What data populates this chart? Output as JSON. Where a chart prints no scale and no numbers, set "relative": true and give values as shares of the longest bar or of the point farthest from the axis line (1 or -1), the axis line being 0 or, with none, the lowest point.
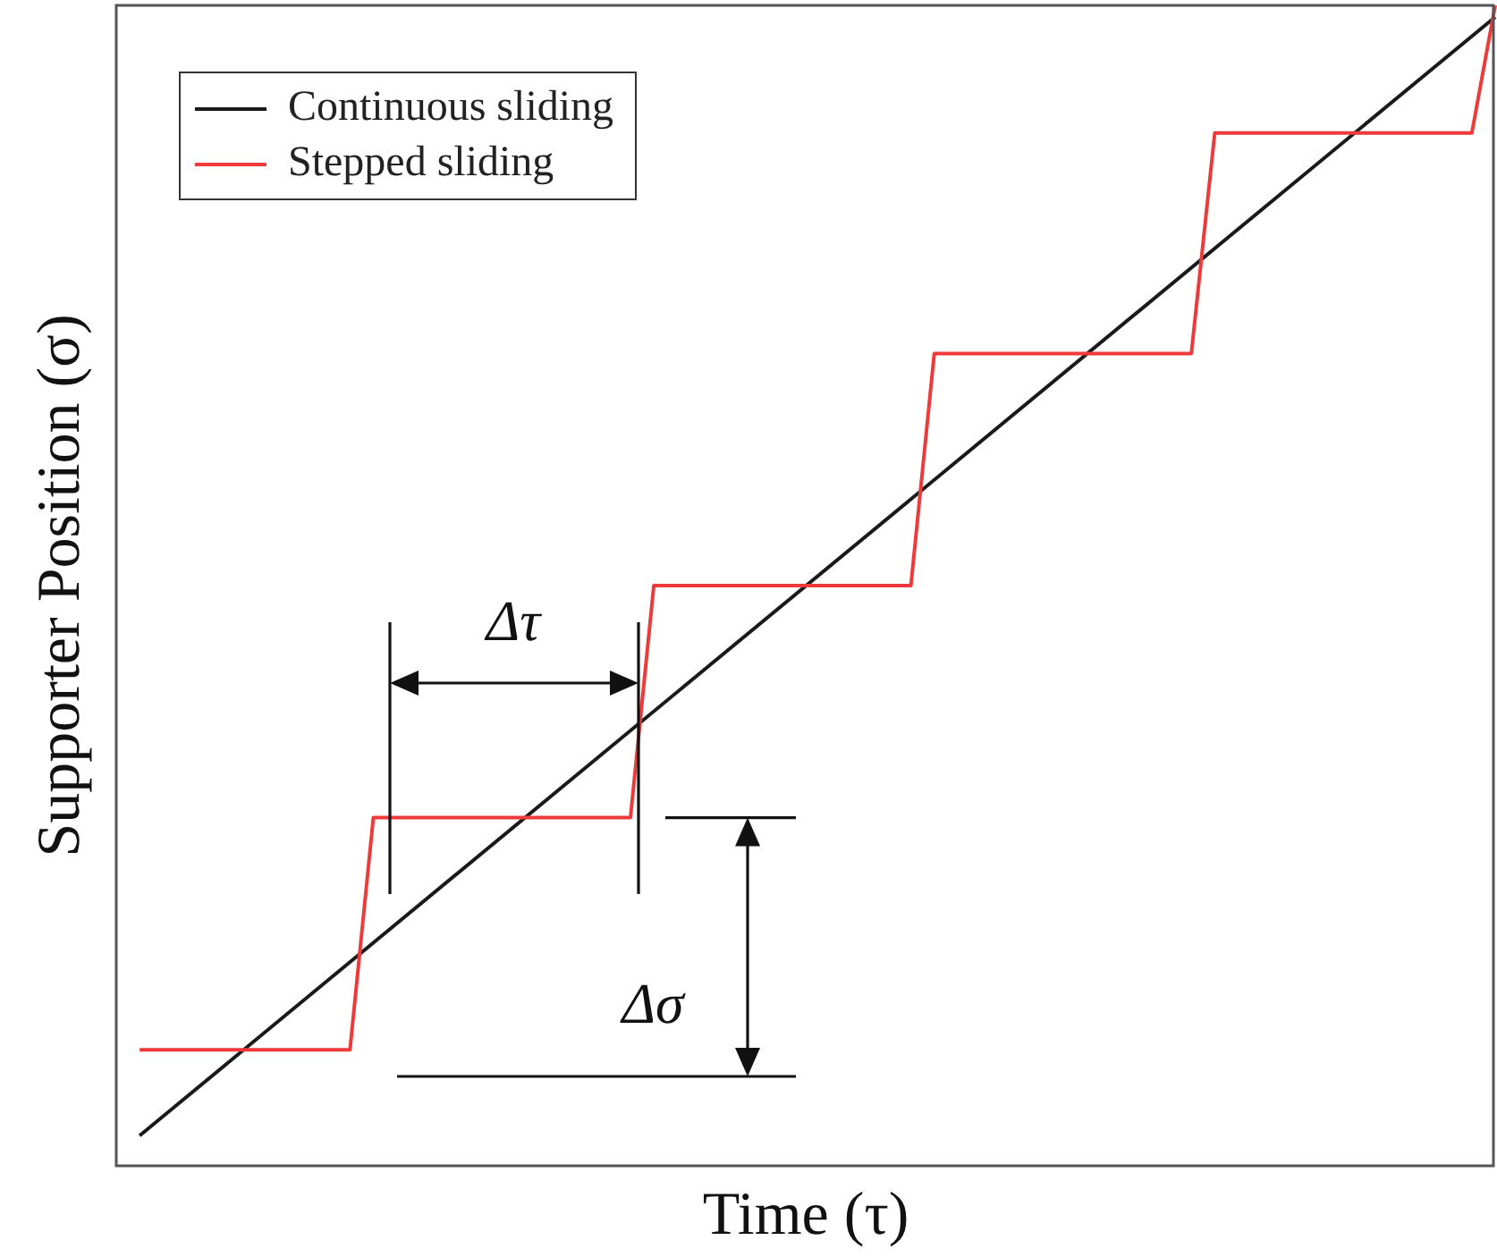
{
  "chart_data": {
    "type": "line",
    "relative": true,
    "xlabel": "Time (τ)",
    "ylabel": "Supporter Position (σ)",
    "legend": "top left",
    "marker": "none",
    "categories": [
      null,
      null,
      null,
      null,
      null,
      null,
      null,
      null,
      null,
      null,
      null,
      null,
      null,
      null,
      null,
      null,
      null,
      null,
      null,
      null,
      null,
      null,
      null,
      null,
      null,
      null,
      null,
      null,
      null,
      null,
      null,
      null,
      null,
      null,
      null,
      null,
      null,
      null,
      null,
      null,
      null,
      null,
      null,
      null,
      null,
      null,
      null,
      null,
      null,
      null,
      null,
      null,
      null,
      null,
      null,
      null,
      null,
      null,
      null,
      null
    ],
    "series": [
      {
        "name": "Continuous sliding",
        "color": "#1a1a1a",
        "values": [
          null,
          0.026,
          null,
          null,
          null,
          null,
          null,
          null,
          null,
          null,
          null,
          null,
          null,
          null,
          null,
          null,
          null,
          null,
          null,
          null,
          null,
          null,
          null,
          null,
          null,
          null,
          null,
          null,
          null,
          null,
          null,
          null,
          null,
          null,
          null,
          null,
          null,
          null,
          null,
          null,
          null,
          null,
          null,
          null,
          null,
          null,
          null,
          null,
          null,
          null,
          null,
          null,
          null,
          null,
          null,
          null,
          null,
          null,
          null,
          0.99
        ]
      },
      {
        "name": "Stepped sliding",
        "color": "#ee3a3a",
        "values": [
          null,
          0.1,
          0.1,
          0.1,
          0.1,
          0.1,
          0.1,
          0.1,
          0.1,
          0.1,
          0.1,
          0.3,
          0.3,
          0.3,
          0.3,
          0.3,
          0.3,
          0.3,
          0.3,
          0.3,
          0.3,
          0.3,
          0.3,
          0.5,
          0.5,
          0.5,
          0.5,
          0.5,
          0.5,
          0.5,
          0.5,
          0.5,
          0.5,
          0.5,
          0.5,
          0.7,
          0.7,
          0.7,
          0.7,
          0.7,
          0.7,
          0.7,
          0.7,
          0.7,
          0.7,
          0.7,
          0.7,
          0.89,
          0.89,
          0.89,
          0.89,
          0.89,
          0.89,
          0.89,
          0.89,
          0.89,
          0.89,
          0.89,
          0.89,
          1.0
        ]
      }
    ],
    "annotations": [
      "Δτ",
      "Δσ"
    ]
  }
}
